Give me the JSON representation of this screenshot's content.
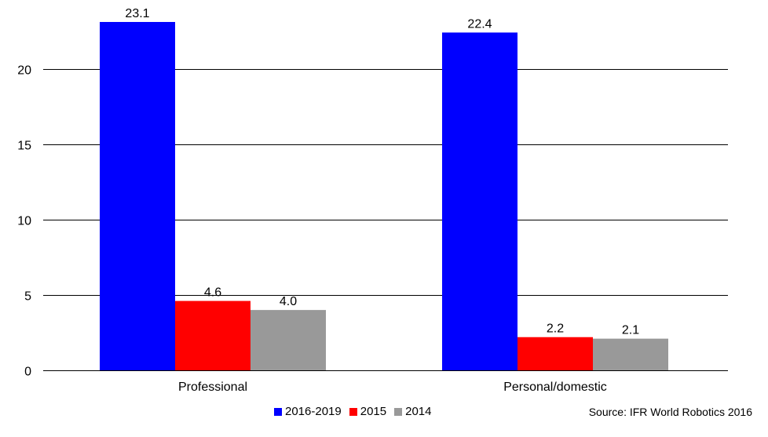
{
  "chart_data": {
    "type": "bar",
    "categories": [
      "Professional",
      "Personal/domestic"
    ],
    "series": [
      {
        "name": "2016-2019",
        "values": [
          23.1,
          22.4
        ],
        "color": "#0000ff"
      },
      {
        "name": "2015",
        "values": [
          4.6,
          2.2
        ],
        "color": "#ff0000"
      },
      {
        "name": "2014",
        "values": [
          4.0,
          2.1
        ],
        "color": "#999999"
      }
    ],
    "data_labels": [
      [
        "23.1",
        "22.4"
      ],
      [
        "4.6",
        "2.2"
      ],
      [
        "4.0",
        "2.1"
      ]
    ],
    "yticks": [
      0,
      5,
      10,
      15,
      20
    ],
    "ytick_labels": [
      "0",
      "5",
      "10",
      "15",
      "20"
    ],
    "ylim": [
      0,
      23.1
    ],
    "grid": true,
    "legend_position": "bottom",
    "title": "",
    "xlabel": "",
    "ylabel": ""
  },
  "source_note": "Source:  IFR World Robotics 2016"
}
